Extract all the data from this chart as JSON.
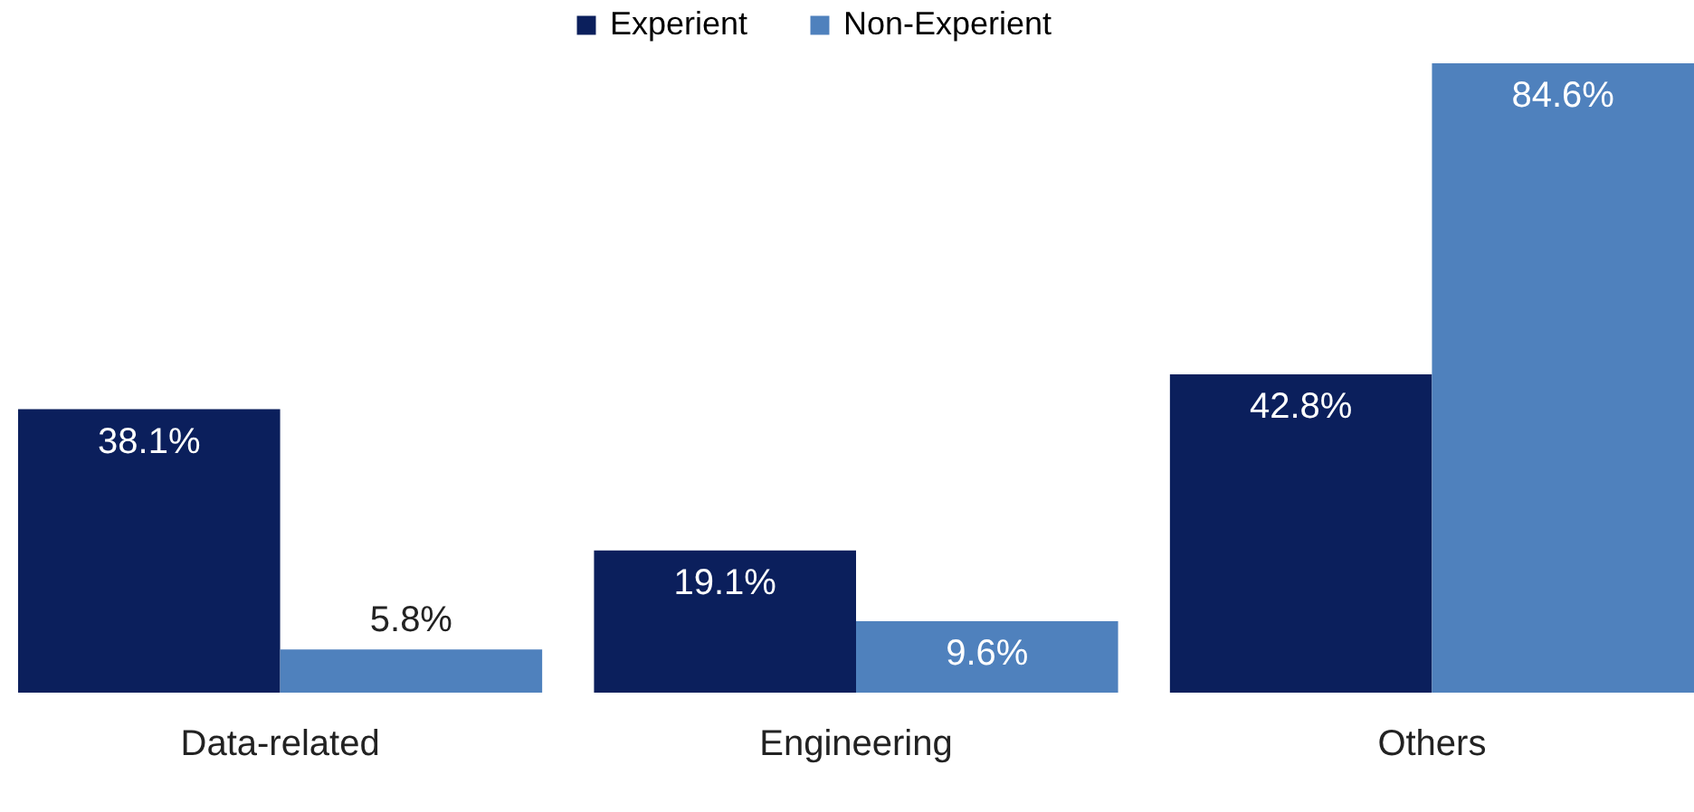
{
  "chart_data": {
    "type": "bar",
    "categories": [
      "Data-related",
      "Engineering",
      "Others"
    ],
    "series": [
      {
        "name": "Experient",
        "color": "#0b1f5c",
        "values": [
          38.1,
          19.1,
          42.8
        ],
        "value_labels": [
          "38.1%",
          "19.1%",
          "42.8%"
        ]
      },
      {
        "name": "Non-Experient",
        "color": "#4f81bd",
        "values": [
          5.8,
          9.6,
          84.6
        ],
        "value_labels": [
          "5.8%",
          "9.6%",
          "84.6%"
        ]
      }
    ],
    "legend": "top"
  }
}
